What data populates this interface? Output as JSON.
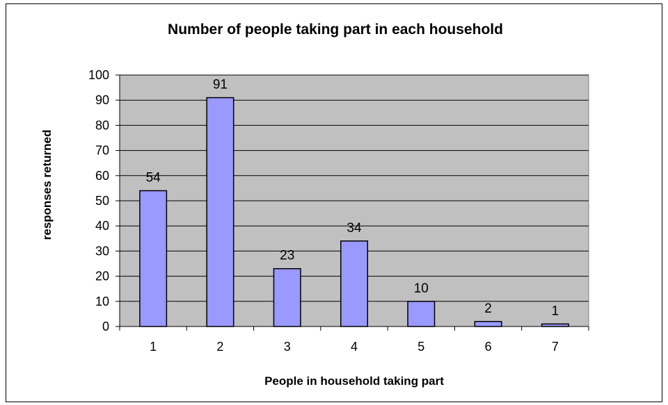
{
  "chart_data": {
    "type": "bar",
    "title": "Number of people taking part in each household",
    "xlabel": "People in household taking part",
    "ylabel": "responses returned",
    "categories": [
      "1",
      "2",
      "3",
      "4",
      "5",
      "6",
      "7"
    ],
    "values": [
      54,
      91,
      23,
      34,
      10,
      2,
      1
    ],
    "data_labels": [
      "54",
      "91",
      "23",
      "34",
      "10",
      "2",
      "1"
    ],
    "ylim": [
      0,
      100
    ],
    "yticks": [
      "0",
      "10",
      "20",
      "30",
      "40",
      "50",
      "60",
      "70",
      "80",
      "90",
      "100"
    ],
    "grid": true,
    "legend": "none",
    "colors": {
      "plot_background": "#c0c0c0",
      "bar_fill": "#9999ff",
      "bar_stroke": "#000000",
      "gridline": "#000000"
    }
  }
}
